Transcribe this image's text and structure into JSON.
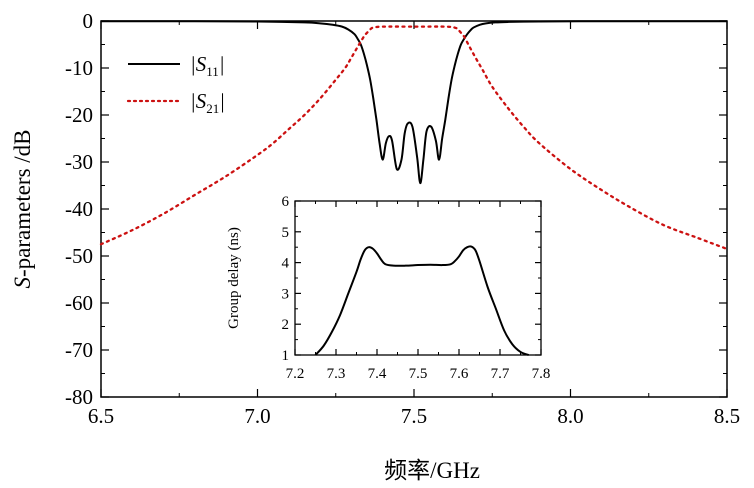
{
  "chart_data": [
    {
      "type": "line",
      "ylabel_prefix": "S",
      "ylabel_rest": "-parameters /dB",
      "xlabel": "频率/GHz",
      "xlim": [
        6.5,
        8.5
      ],
      "ylim": [
        -80,
        0
      ],
      "xticks": [
        "6.5",
        "7.0",
        "7.5",
        "8.0",
        "8.5"
      ],
      "yticks": [
        "0",
        "-10",
        "-20",
        "-30",
        "-40",
        "-50",
        "-60",
        "-70",
        "-80"
      ],
      "legend_position": "top-left",
      "series": [
        {
          "legend_main": "S",
          "legend_sub": "11",
          "color": "#000000",
          "style": "solid",
          "x": [
            6.5,
            6.8,
            7.0,
            7.15,
            7.2,
            7.24,
            7.27,
            7.29,
            7.31,
            7.32,
            7.33,
            7.34,
            7.35,
            7.36,
            7.37,
            7.38,
            7.39,
            7.4,
            7.41,
            7.42,
            7.43,
            7.445,
            7.46,
            7.47,
            7.48,
            7.495,
            7.51,
            7.52,
            7.53,
            7.54,
            7.555,
            7.57,
            7.58,
            7.59,
            7.6,
            7.61,
            7.62,
            7.63,
            7.64,
            7.65,
            7.66,
            7.67,
            7.68,
            7.69,
            7.71,
            7.73,
            7.76,
            7.8,
            7.9,
            8.1,
            8.3,
            8.5
          ],
          "y": [
            -0.05,
            -0.05,
            -0.1,
            -0.3,
            -0.5,
            -0.8,
            -1.2,
            -1.8,
            -2.8,
            -3.8,
            -5.0,
            -7.0,
            -9.5,
            -12.5,
            -16.5,
            -21.0,
            -26.0,
            -29.5,
            -26.0,
            -24.5,
            -25.5,
            -31.5,
            -29.5,
            -24.0,
            -21.8,
            -22.5,
            -29.0,
            -34.5,
            -29.5,
            -23.5,
            -22.5,
            -25.5,
            -29.5,
            -25.0,
            -21.0,
            -16.5,
            -12.5,
            -9.5,
            -7.0,
            -5.0,
            -3.8,
            -2.8,
            -2.0,
            -1.4,
            -0.8,
            -0.5,
            -0.3,
            -0.2,
            -0.1,
            -0.05,
            -0.05,
            -0.05
          ]
        },
        {
          "legend_main": "S",
          "legend_sub": "21",
          "color": "#cc1111",
          "style": "dotted",
          "x": [
            6.5,
            6.6,
            6.7,
            6.8,
            6.9,
            7.0,
            7.05,
            7.1,
            7.15,
            7.2,
            7.25,
            7.28,
            7.3,
            7.32,
            7.34,
            7.35,
            7.36,
            7.37,
            7.4,
            7.5,
            7.6,
            7.63,
            7.64,
            7.65,
            7.66,
            7.68,
            7.7,
            7.72,
            7.75,
            7.8,
            7.85,
            7.9,
            8.0,
            8.1,
            8.2,
            8.3,
            8.4,
            8.5
          ],
          "y": [
            -47.5,
            -44.5,
            -41.0,
            -37.0,
            -33.0,
            -28.5,
            -26.0,
            -23.0,
            -20.0,
            -16.5,
            -12.5,
            -10.0,
            -7.8,
            -5.5,
            -3.3,
            -2.5,
            -1.8,
            -1.4,
            -1.2,
            -1.2,
            -1.2,
            -1.4,
            -1.8,
            -2.5,
            -3.3,
            -5.8,
            -8.2,
            -10.5,
            -14.0,
            -18.5,
            -22.5,
            -26.0,
            -31.5,
            -36.0,
            -40.0,
            -43.5,
            -46.0,
            -48.5
          ]
        }
      ]
    },
    {
      "type": "line",
      "ylabel": "Group delay (ns)",
      "xlim": [
        7.2,
        7.8
      ],
      "ylim": [
        1,
        6
      ],
      "xticks": [
        "7.2",
        "7.3",
        "7.4",
        "7.5",
        "7.6",
        "7.7",
        "7.8"
      ],
      "yticks": [
        "1",
        "2",
        "3",
        "4",
        "5",
        "6"
      ],
      "series": [
        {
          "color": "#000000",
          "style": "solid",
          "x": [
            7.25,
            7.27,
            7.29,
            7.31,
            7.33,
            7.35,
            7.36,
            7.37,
            7.38,
            7.39,
            7.4,
            7.41,
            7.42,
            7.44,
            7.47,
            7.5,
            7.53,
            7.56,
            7.58,
            7.59,
            7.6,
            7.61,
            7.62,
            7.63,
            7.64,
            7.65,
            7.67,
            7.69,
            7.71,
            7.73,
            7.75,
            7.77
          ],
          "y": [
            1.0,
            1.3,
            1.75,
            2.3,
            3.0,
            3.7,
            4.1,
            4.4,
            4.5,
            4.45,
            4.3,
            4.1,
            3.95,
            3.9,
            3.9,
            3.92,
            3.93,
            3.92,
            3.95,
            4.05,
            4.2,
            4.4,
            4.5,
            4.52,
            4.4,
            4.05,
            3.2,
            2.5,
            1.8,
            1.35,
            1.1,
            1.0
          ]
        }
      ]
    }
  ]
}
